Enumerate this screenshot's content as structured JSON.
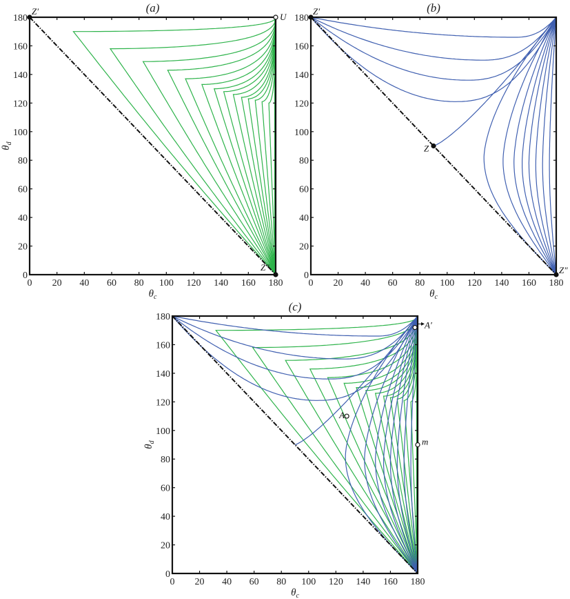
{
  "colors": {
    "green": "#2db34a",
    "blue": "#3f5fb0",
    "axis": "#111111",
    "diagonal": "#111111"
  },
  "chart_data": [
    {
      "id": "a",
      "type": "line",
      "title": "(a)",
      "xlabel": "θ_c",
      "ylabel": "θ_d",
      "xlim": [
        0,
        180
      ],
      "ylim": [
        0,
        180
      ],
      "xticks": [
        0,
        20,
        40,
        60,
        80,
        100,
        120,
        140,
        160,
        180
      ],
      "yticks": [
        0,
        20,
        40,
        60,
        80,
        100,
        120,
        140,
        160,
        180
      ],
      "grid": false,
      "legend": null,
      "diagonal": {
        "style": "dash-dot",
        "from": [
          0,
          180
        ],
        "to": [
          180,
          0
        ]
      },
      "series": [
        {
          "name": "green family (trajectories from Z'' to U)",
          "color": "green",
          "turning_points": [
            [
              32,
              170
            ],
            [
              59,
              158
            ],
            [
              83,
              149
            ],
            [
              101,
              143
            ],
            [
              114,
              137
            ],
            [
              126,
              133
            ],
            [
              135,
              130
            ],
            [
              142,
              128
            ],
            [
              149,
              126
            ],
            [
              155,
              124
            ],
            [
              160,
              123
            ],
            [
              165,
              122
            ],
            [
              170,
              121
            ],
            [
              175,
              120
            ]
          ]
        }
      ],
      "annotations": [
        {
          "label": "Z′",
          "x": 0,
          "y": 180
        },
        {
          "label": "U",
          "x": 180,
          "y": 180
        },
        {
          "label": "Z″",
          "x": 180,
          "y": 0
        }
      ]
    },
    {
      "id": "b",
      "type": "line",
      "title": "(b)",
      "xlabel": "θ_c",
      "ylabel": "",
      "xlim": [
        0,
        180
      ],
      "ylim": [
        0,
        180
      ],
      "xticks": [
        0,
        20,
        40,
        60,
        80,
        100,
        120,
        140,
        160,
        180
      ],
      "yticks": [
        0,
        20,
        40,
        60,
        80,
        100,
        120,
        140,
        160,
        180
      ],
      "grid": false,
      "legend": null,
      "diagonal": {
        "style": "dash-dot",
        "from": [
          0,
          180
        ],
        "to": [
          180,
          0
        ]
      },
      "series": [
        {
          "name": "blue upper family (from Z′)",
          "color": "blue",
          "minima": [
            [
              150,
              166
            ],
            [
              126,
              150
            ],
            [
              115,
              136
            ],
            [
              106,
              121
            ]
          ]
        },
        {
          "name": "blue separatrix (from Z)",
          "color": "blue",
          "points": [
            [
              90,
              90
            ],
            [
              120,
              112
            ],
            [
              150,
              140
            ],
            [
              180,
              180
            ]
          ]
        },
        {
          "name": "blue lower family (from Z″)",
          "color": "blue",
          "turning_points": [
            [
              127,
              82
            ],
            [
              141,
              80
            ],
            [
              149,
              79
            ],
            [
              155,
              78
            ],
            [
              160,
              78
            ],
            [
              165,
              77
            ],
            [
              170,
              77
            ],
            [
              175,
              77
            ]
          ]
        }
      ],
      "annotations": [
        {
          "label": "Z′",
          "x": 0,
          "y": 180
        },
        {
          "label": "Z",
          "x": 90,
          "y": 90
        },
        {
          "label": "Z″",
          "x": 180,
          "y": 0
        }
      ]
    },
    {
      "id": "c",
      "type": "line",
      "title": "(c)",
      "xlabel": "θ_c",
      "ylabel": "θ_d",
      "xlim": [
        0,
        180
      ],
      "ylim": [
        0,
        180
      ],
      "xticks": [
        0,
        20,
        40,
        60,
        80,
        100,
        120,
        140,
        160,
        180
      ],
      "yticks": [
        0,
        20,
        40,
        60,
        80,
        100,
        120,
        140,
        160,
        180
      ],
      "grid": false,
      "legend": null,
      "diagonal": {
        "style": "dash-dot",
        "from": [
          0,
          180
        ],
        "to": [
          180,
          0
        ]
      },
      "series": [
        {
          "name": "green family (overlay of a)",
          "color": "green"
        },
        {
          "name": "blue family (overlay of b)",
          "color": "blue"
        }
      ],
      "annotations": [
        {
          "label": "A",
          "x": 128,
          "y": 110
        },
        {
          "label": "A′",
          "x": 178,
          "y": 172,
          "arrow": true
        },
        {
          "label": "m",
          "x": 180,
          "y": 90
        }
      ]
    }
  ],
  "panels": {
    "a": {
      "title": "(a)",
      "xlabel": "θc",
      "ylabel": "θd"
    },
    "b": {
      "title": "(b)",
      "xlabel": "θc",
      "ylabel": ""
    },
    "c": {
      "title": "(c)",
      "xlabel": "θc",
      "ylabel": "θd"
    }
  },
  "ticks": [
    "0",
    "20",
    "40",
    "60",
    "80",
    "100",
    "120",
    "140",
    "160",
    "180"
  ]
}
